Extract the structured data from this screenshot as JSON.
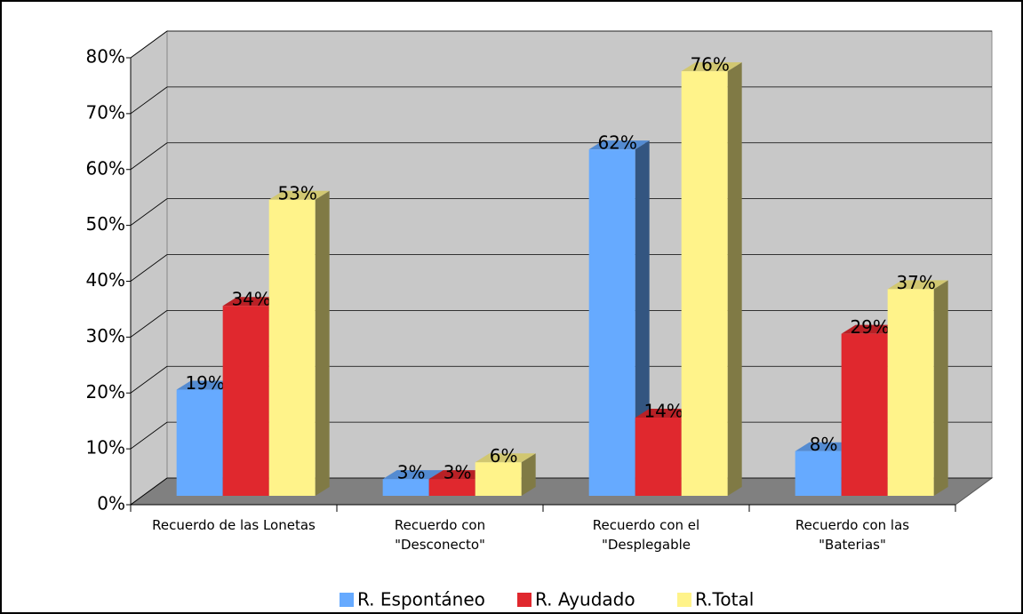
{
  "chart_data": {
    "type": "bar3d",
    "categories": [
      "Recuerdo de las Lonetas",
      "Recuerdo con \"Desconecto\"",
      "Recuerdo con el \"Desplegable",
      "Recuerdo con las \"Baterias\""
    ],
    "series": [
      {
        "name": "R. Espontáneo",
        "color": "#66aaff",
        "values": [
          19,
          3,
          62,
          8
        ],
        "value_labels": [
          "19%",
          "3%",
          "62%",
          "8%"
        ]
      },
      {
        "name": "R. Ayudado",
        "color": "#e0282e",
        "values": [
          34,
          3,
          14,
          29
        ],
        "value_labels": [
          "34%",
          "3%",
          "14%",
          "29%"
        ]
      },
      {
        "name": "R.Total",
        "color": "#fff38a",
        "values": [
          53,
          6,
          76,
          37
        ],
        "value_labels": [
          "53%",
          "6%",
          "76%",
          "37%"
        ]
      }
    ],
    "ylim": [
      0,
      80
    ],
    "yticks": [
      {
        "value": 0,
        "label": "0%"
      },
      {
        "value": 10,
        "label": "10%"
      },
      {
        "value": 20,
        "label": "20%"
      },
      {
        "value": 30,
        "label": "30%"
      },
      {
        "value": 40,
        "label": "40%"
      },
      {
        "value": 50,
        "label": "50%"
      },
      {
        "value": 60,
        "label": "60%"
      },
      {
        "value": 70,
        "label": "70%"
      },
      {
        "value": 80,
        "label": "80%"
      }
    ],
    "grid": true,
    "legend": "bottom"
  }
}
